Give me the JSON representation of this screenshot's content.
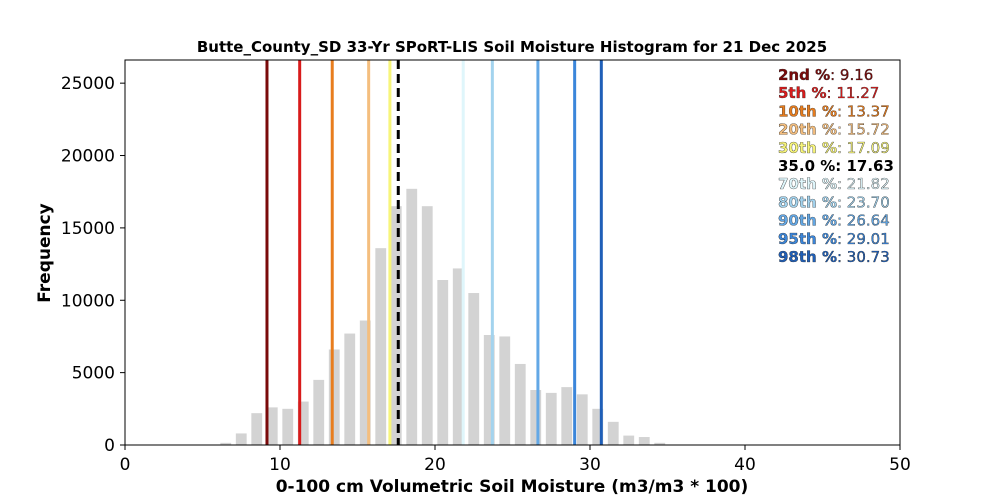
{
  "chart_data": {
    "type": "bar",
    "title": "Butte_County_SD 33-Yr SPoRT-LIS Soil Moisture Histogram for 21 Dec 2025",
    "xlabel": "0-100 cm Volumetric Soil Moisture (m3/m3 * 100)",
    "ylabel": "Frequency",
    "xlim": [
      0,
      50
    ],
    "ylim": [
      0,
      26600
    ],
    "xticks": [
      "0",
      "10",
      "20",
      "30",
      "40",
      "50"
    ],
    "yticks": [
      "0",
      "5000",
      "10000",
      "15000",
      "20000",
      "25000"
    ],
    "grid": false,
    "legend_position": "top-right",
    "bar_color": "#d3d3d3",
    "bin_width": 1,
    "bins": [
      {
        "x": 6.5,
        "value": 150
      },
      {
        "x": 7.5,
        "value": 800
      },
      {
        "x": 8.5,
        "value": 2200
      },
      {
        "x": 9.5,
        "value": 2600
      },
      {
        "x": 10.5,
        "value": 2500
      },
      {
        "x": 11.5,
        "value": 3000
      },
      {
        "x": 12.5,
        "value": 4500
      },
      {
        "x": 13.5,
        "value": 6600
      },
      {
        "x": 14.5,
        "value": 7700
      },
      {
        "x": 15.5,
        "value": 8600
      },
      {
        "x": 16.5,
        "value": 13600
      },
      {
        "x": 17.5,
        "value": 16500
      },
      {
        "x": 18.5,
        "value": 17700
      },
      {
        "x": 19.5,
        "value": 16500
      },
      {
        "x": 20.5,
        "value": 11400
      },
      {
        "x": 21.5,
        "value": 12200
      },
      {
        "x": 22.5,
        "value": 10500
      },
      {
        "x": 23.5,
        "value": 7600
      },
      {
        "x": 24.5,
        "value": 7500
      },
      {
        "x": 25.5,
        "value": 5600
      },
      {
        "x": 26.5,
        "value": 3800
      },
      {
        "x": 27.5,
        "value": 3600
      },
      {
        "x": 28.5,
        "value": 4000
      },
      {
        "x": 29.5,
        "value": 3500
      },
      {
        "x": 30.5,
        "value": 2500
      },
      {
        "x": 31.5,
        "value": 1600
      },
      {
        "x": 32.5,
        "value": 650
      },
      {
        "x": 33.5,
        "value": 550
      },
      {
        "x": 34.5,
        "value": 150
      }
    ],
    "percentile_lines": [
      {
        "label": "2nd %",
        "value": 9.16,
        "value_text": "9.16",
        "color": "#7a0a0a",
        "dashed": false
      },
      {
        "label": "5th %",
        "value": 11.27,
        "value_text": "11.27",
        "color": "#d81b1b",
        "dashed": false
      },
      {
        "label": "10th %",
        "value": 13.37,
        "value_text": "13.37",
        "color": "#e87d1e",
        "dashed": false
      },
      {
        "label": "20th %",
        "value": 15.72,
        "value_text": "15.72",
        "color": "#f4be7e",
        "dashed": false
      },
      {
        "label": "30th %",
        "value": 17.09,
        "value_text": "17.09",
        "color": "#f7f57a",
        "dashed": false
      },
      {
        "label": "35.0 %",
        "value": 17.63,
        "value_text": "17.63",
        "color": "#000000",
        "dashed": true
      },
      {
        "label": "70th %",
        "value": 21.82,
        "value_text": "21.82",
        "color": "#dff6fb",
        "dashed": false
      },
      {
        "label": "80th %",
        "value": 23.7,
        "value_text": "23.70",
        "color": "#a3d3ee",
        "dashed": false
      },
      {
        "label": "90th %",
        "value": 26.64,
        "value_text": "26.64",
        "color": "#63a8e6",
        "dashed": false
      },
      {
        "label": "95th %",
        "value": 29.01,
        "value_text": "29.01",
        "color": "#3b86da",
        "dashed": false
      },
      {
        "label": "98th %",
        "value": 30.73,
        "value_text": "30.73",
        "color": "#1f5fb8",
        "dashed": false
      }
    ]
  }
}
